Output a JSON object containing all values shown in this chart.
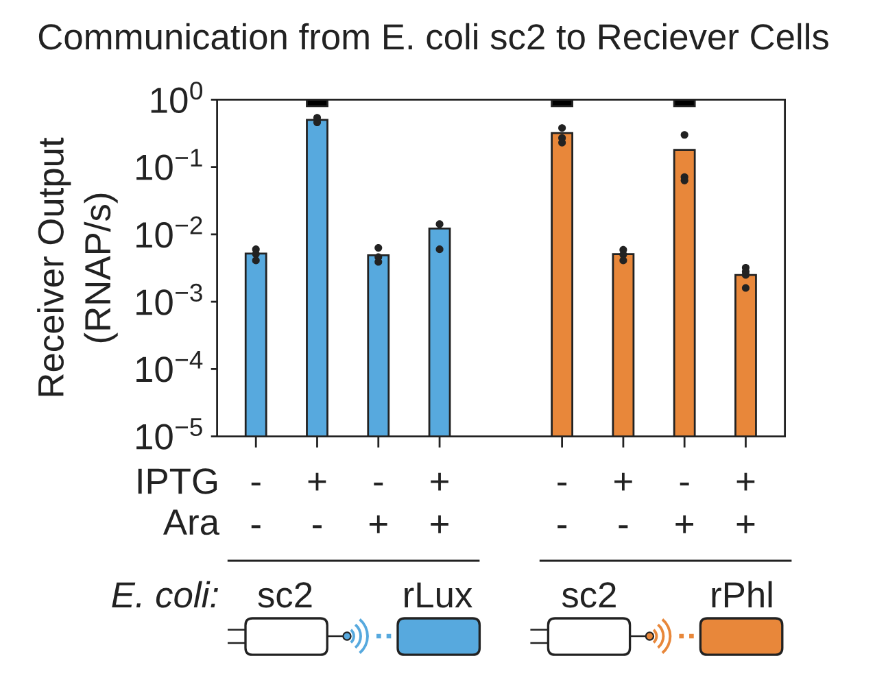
{
  "chart_data": {
    "type": "bar",
    "title": "Communication from E. coli sc2 to Reciever Cells",
    "ylabel": "Receiver Output\n(RNAP/s)",
    "categories": [
      "-\n-",
      "+\n-",
      "-\n+",
      "+\n+",
      null,
      "-\n-",
      "+\n-",
      "-\n+",
      "+\n+"
    ],
    "series": [
      {
        "colors": [
          "#57a9de",
          "#57a9de",
          "#57a9de",
          "#57a9de",
          null,
          "#e8873a",
          "#e8873a",
          "#e8873a",
          "#e8873a"
        ],
        "values": [
          0.0052,
          0.5,
          0.0049,
          0.0122,
          null,
          0.32,
          0.0051,
          0.18,
          0.0025
        ]
      },
      {
        "color": "#000000",
        "base": [
          null,
          0.8,
          null,
          null,
          null,
          0.8,
          null,
          0.8,
          null
        ],
        "values": [
          null,
          0.2,
          null,
          null,
          null,
          0.2,
          null,
          0.2,
          null
        ]
      },
      {
        "type": "scatter",
        "color": "#222222",
        "values": [
          0.006,
          0.54,
          0.0063,
          0.0142,
          null,
          0.38,
          0.0059,
          0.3,
          0.0032
        ]
      },
      {
        "type": "scatter",
        "color": "#222222",
        "values": [
          0.0051,
          null,
          0.0046,
          0.006,
          null,
          0.27,
          0.005,
          0.071,
          0.0028
        ]
      },
      {
        "type": "scatter",
        "color": "#222222",
        "values": [
          0.0041,
          0.46,
          0.0039,
          null,
          null,
          0.23,
          0.0041,
          0.063,
          0.0025
        ]
      },
      {
        "type": "scatter",
        "color": "#222222",
        "values": [
          null,
          null,
          null,
          null,
          null,
          null,
          null,
          null,
          0.0016
        ]
      }
    ],
    "ylim": [
      1e-05,
      1
    ],
    "yticks": [
      {
        "value": 1e-05,
        "label": "10$^{−5}$"
      },
      {
        "value": 0.0001,
        "label": "10$^{−4}$"
      },
      {
        "value": 0.001,
        "label": "10$^{−3}$"
      },
      {
        "value": 0.01,
        "label": "10$^{−2}$"
      },
      {
        "value": 0.1,
        "label": "10$^{−1}$"
      },
      {
        "value": 1,
        "label": "10$^{0}$"
      }
    ],
    "log": "y",
    "marker": "circle",
    "annotations": [
      "IPTG",
      "Ara",
      "E. coli:",
      "sc2",
      "rLux",
      "sc2",
      "rPhl"
    ]
  }
}
